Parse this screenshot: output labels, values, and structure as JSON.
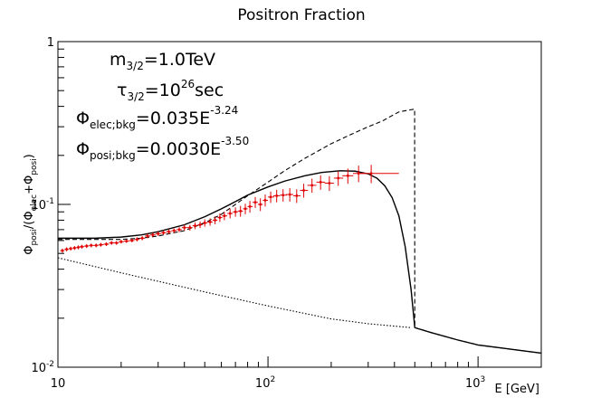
{
  "chart_data": {
    "type": "line",
    "title": "Positron Fraction",
    "xlabel": "E [GeV]",
    "ylabel": {
      "phi": "Φ",
      "posi": "posi",
      "mid": "/(Φ",
      "elec": "elec",
      "plus": "+Φ",
      "posi2": "posi",
      "close": ")"
    },
    "xscale": "log",
    "yscale": "log",
    "xlim": [
      10,
      2000
    ],
    "ylim": [
      0.01,
      1
    ],
    "x_ticks": [
      {
        "value": 10,
        "label": "10",
        "exp": ""
      },
      {
        "value": 100,
        "label": "10",
        "exp": "2"
      },
      {
        "value": 1000,
        "label": "10",
        "exp": "3"
      }
    ],
    "y_ticks": [
      {
        "value": 0.01,
        "label": "10",
        "exp": "-2"
      },
      {
        "value": 0.1,
        "label": "10",
        "exp": "-1"
      },
      {
        "value": 1,
        "label": "1",
        "exp": ""
      }
    ],
    "annotations": {
      "mass": {
        "sym": "m",
        "sub": "3/2",
        "rest": "=1.0TeV"
      },
      "lifetime": {
        "sym": "τ",
        "sub": "3/2",
        "pre": "=10",
        "sup": "26",
        "rest": "sec"
      },
      "phi_elec": {
        "sym": "Φ",
        "sub": "elec;bkg",
        "rest": "=0.035E",
        "sup": "-3.24"
      },
      "phi_posi": {
        "sym": "Φ",
        "sub": "posi;bkg",
        "rest": "=0.0030E",
        "sup": "-3.50"
      }
    },
    "series": [
      {
        "style": "solid",
        "color": "#000000",
        "x": [
          10,
          15,
          20,
          25,
          30,
          40,
          50,
          60,
          70,
          80,
          100,
          120,
          150,
          180,
          220,
          260,
          300,
          330,
          360,
          390,
          420,
          450,
          480,
          500,
          600,
          800,
          1000,
          1500,
          2000
        ],
        "y": [
          0.062,
          0.062,
          0.063,
          0.065,
          0.068,
          0.075,
          0.084,
          0.094,
          0.104,
          0.114,
          0.128,
          0.139,
          0.15,
          0.157,
          0.161,
          0.16,
          0.154,
          0.145,
          0.13,
          0.11,
          0.085,
          0.055,
          0.03,
          0.0175,
          0.0163,
          0.0147,
          0.0137,
          0.0128,
          0.0122
        ]
      },
      {
        "style": "dashed",
        "color": "#000000",
        "x": [
          10,
          15,
          20,
          25,
          30,
          40,
          50,
          60,
          70,
          80,
          100,
          120,
          150,
          200,
          250,
          300,
          350,
          380,
          420,
          470,
          499,
          500,
          600,
          800,
          1000,
          1500,
          2000
        ],
        "y": [
          0.061,
          0.061,
          0.061,
          0.062,
          0.064,
          0.069,
          0.077,
          0.087,
          0.1,
          0.113,
          0.137,
          0.161,
          0.192,
          0.236,
          0.27,
          0.3,
          0.325,
          0.345,
          0.37,
          0.38,
          0.385,
          0.0175,
          0.0163,
          0.0147,
          0.0137,
          0.0128,
          0.0122
        ]
      },
      {
        "style": "dotted",
        "color": "#000000",
        "x": [
          10,
          20,
          50,
          100,
          200,
          300,
          480
        ],
        "y": [
          0.047,
          0.038,
          0.029,
          0.0238,
          0.0198,
          0.0185,
          0.0175
        ]
      }
    ],
    "data_points": {
      "color": "#e00000",
      "x": [
        10.5,
        11,
        11.5,
        12,
        12.5,
        13,
        13.7,
        14.4,
        15.2,
        16,
        17,
        18,
        19,
        20,
        21.2,
        22.5,
        23.8,
        25.2,
        26.7,
        28.3,
        30,
        31.8,
        33.7,
        35.7,
        37.8,
        40,
        42.5,
        45,
        47.5,
        50,
        53,
        56,
        59,
        62,
        66,
        70,
        74,
        78,
        82,
        87,
        92,
        97,
        103,
        110,
        118,
        127,
        137,
        148,
        162,
        178,
        196,
        216,
        240,
        270,
        310
      ],
      "y": [
        0.052,
        0.053,
        0.0535,
        0.054,
        0.0545,
        0.055,
        0.0555,
        0.056,
        0.056,
        0.0565,
        0.057,
        0.058,
        0.058,
        0.059,
        0.0595,
        0.06,
        0.061,
        0.062,
        0.064,
        0.065,
        0.066,
        0.067,
        0.068,
        0.069,
        0.07,
        0.072,
        0.072,
        0.074,
        0.075,
        0.077,
        0.078,
        0.08,
        0.083,
        0.085,
        0.088,
        0.09,
        0.091,
        0.094,
        0.097,
        0.103,
        0.1,
        0.106,
        0.111,
        0.113,
        0.114,
        0.115,
        0.113,
        0.122,
        0.131,
        0.137,
        0.135,
        0.145,
        0.15,
        0.155,
        0.155
      ],
      "yerr": [
        0.0015,
        0.0015,
        0.0015,
        0.0015,
        0.0015,
        0.0015,
        0.0015,
        0.0015,
        0.0015,
        0.0015,
        0.0015,
        0.0015,
        0.0015,
        0.0015,
        0.0015,
        0.0015,
        0.0018,
        0.0018,
        0.002,
        0.002,
        0.002,
        0.002,
        0.0022,
        0.0022,
        0.0025,
        0.003,
        0.003,
        0.0035,
        0.0035,
        0.004,
        0.004,
        0.0045,
        0.005,
        0.005,
        0.006,
        0.006,
        0.007,
        0.007,
        0.008,
        0.008,
        0.009,
        0.009,
        0.009,
        0.01,
        0.01,
        0.011,
        0.011,
        0.012,
        0.013,
        0.014,
        0.014,
        0.015,
        0.016,
        0.018,
        0.02
      ],
      "xerr_lo": [
        0.25,
        0.25,
        0.25,
        0.25,
        0.25,
        0.3,
        0.35,
        0.35,
        0.4,
        0.4,
        0.5,
        0.5,
        0.5,
        0.55,
        0.6,
        0.65,
        0.65,
        0.7,
        0.75,
        0.8,
        0.85,
        0.9,
        0.95,
        1.0,
        1.05,
        1.1,
        1.2,
        1.25,
        1.25,
        1.3,
        1.5,
        1.5,
        1.5,
        1.6,
        2.0,
        2.0,
        2.0,
        2.0,
        2.0,
        2.5,
        2.5,
        2.5,
        3.0,
        4.0,
        4.0,
        5.0,
        5.0,
        6.0,
        8.0,
        8.0,
        10.0,
        10.0,
        14.0,
        16.0,
        35.0
      ],
      "xerr_hi": [
        0.25,
        0.25,
        0.25,
        0.25,
        0.25,
        0.35,
        0.35,
        0.4,
        0.4,
        0.5,
        0.5,
        0.5,
        0.5,
        0.6,
        0.65,
        0.65,
        0.7,
        0.75,
        0.8,
        0.85,
        0.9,
        0.95,
        1.0,
        1.05,
        1.1,
        1.25,
        1.25,
        1.25,
        1.3,
        1.5,
        1.5,
        1.5,
        1.6,
        2.0,
        2.0,
        2.0,
        2.0,
        2.0,
        2.5,
        2.5,
        2.5,
        3.0,
        4.0,
        4.0,
        5.0,
        5.0,
        6.0,
        7.0,
        8.0,
        9.0,
        10.0,
        12.0,
        15.0,
        20.0,
        110.0
      ]
    }
  }
}
